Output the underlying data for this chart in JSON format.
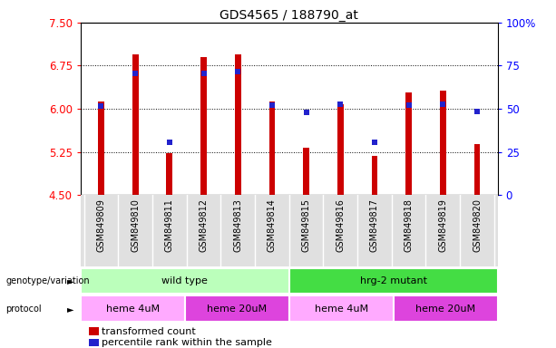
{
  "title": "GDS4565 / 188790_at",
  "samples": [
    "GSM849809",
    "GSM849810",
    "GSM849811",
    "GSM849812",
    "GSM849813",
    "GSM849814",
    "GSM849815",
    "GSM849816",
    "GSM849817",
    "GSM849818",
    "GSM849819",
    "GSM849820"
  ],
  "bar_values": [
    6.12,
    6.95,
    5.22,
    6.9,
    6.95,
    6.12,
    5.32,
    6.08,
    5.18,
    6.28,
    6.32,
    5.38
  ],
  "blue_values": [
    6.05,
    6.62,
    5.42,
    6.62,
    6.65,
    6.07,
    5.93,
    6.08,
    5.42,
    6.07,
    6.08,
    5.95
  ],
  "ylim_left": [
    4.5,
    7.5
  ],
  "ylim_right": [
    0,
    100
  ],
  "yticks_left": [
    4.5,
    5.25,
    6.0,
    6.75,
    7.5
  ],
  "yticks_right": [
    0,
    25,
    50,
    75,
    100
  ],
  "bar_color": "#cc0000",
  "blue_color": "#2222cc",
  "bar_base": 4.5,
  "bar_width": 0.18,
  "genotype_groups": [
    {
      "label": "wild type",
      "start": 0,
      "end": 6,
      "color": "#bbffbb"
    },
    {
      "label": "hrg-2 mutant",
      "start": 6,
      "end": 12,
      "color": "#44dd44"
    }
  ],
  "protocol_groups": [
    {
      "label": "heme 4uM",
      "start": 0,
      "end": 3,
      "color": "#ffaaff"
    },
    {
      "label": "heme 20uM",
      "start": 3,
      "end": 6,
      "color": "#dd44dd"
    },
    {
      "label": "heme 4uM",
      "start": 6,
      "end": 9,
      "color": "#ffaaff"
    },
    {
      "label": "heme 20uM",
      "start": 9,
      "end": 12,
      "color": "#dd44dd"
    }
  ],
  "legend_items": [
    {
      "label": "transformed count",
      "color": "#cc0000"
    },
    {
      "label": "percentile rank within the sample",
      "color": "#2222cc"
    }
  ],
  "grid_lines": [
    5.25,
    6.0,
    6.75
  ],
  "title_fontsize": 10,
  "tick_fontsize": 8.5,
  "sample_fontsize": 7,
  "label_fontsize": 8,
  "legend_fontsize": 8
}
